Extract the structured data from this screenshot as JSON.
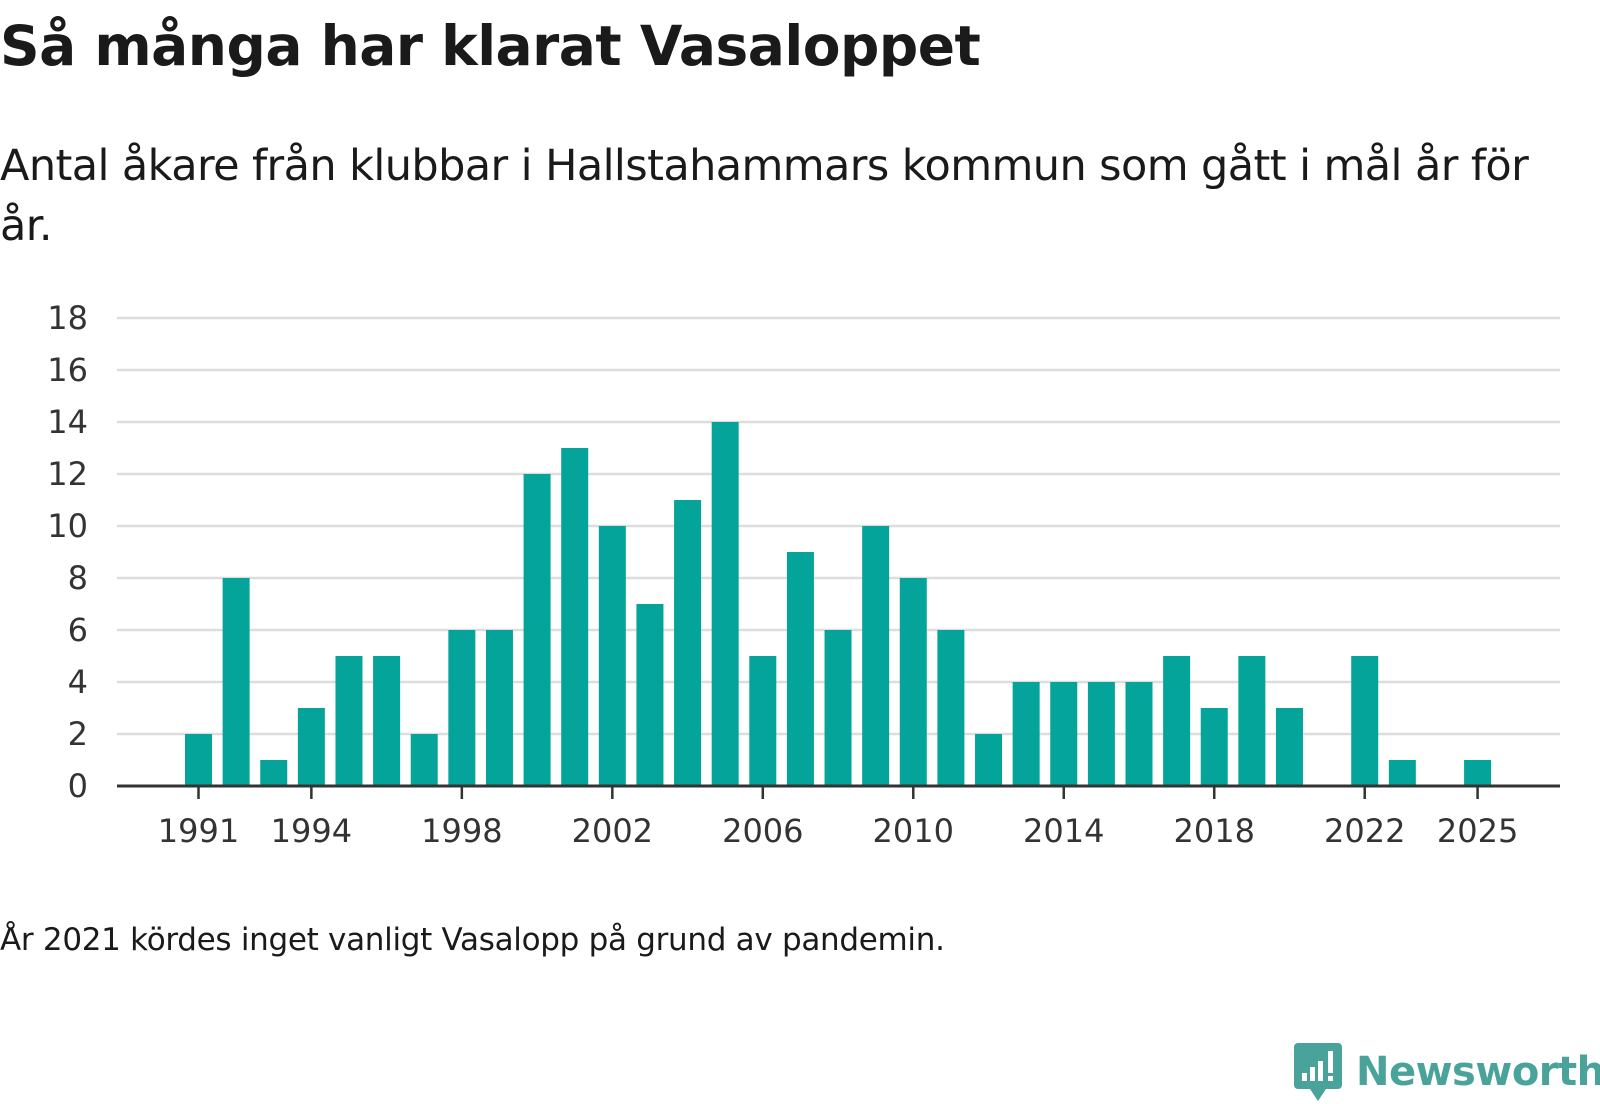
{
  "header": {
    "title": "Så många har klarat Vasaloppet",
    "subtitle": "Antal åkare från klubbar i Hallstahammars kommun som gått i mål år för år."
  },
  "footnote": "År 2021 kördes inget vanligt Vasalopp på grund av pandemin.",
  "logo": {
    "text": "Newsworthy"
  },
  "colors": {
    "bar": "#04a49a",
    "grid": "#dddddd",
    "axis": "#333333",
    "logo": "#4aa39a"
  },
  "chart_data": {
    "type": "bar",
    "title": "Så många har klarat Vasaloppet",
    "xlabel": "",
    "ylabel": "",
    "ylim": [
      0,
      18
    ],
    "y_ticks": [
      0,
      2,
      4,
      6,
      8,
      10,
      12,
      14,
      16,
      18
    ],
    "x_tick_labels": [
      1991,
      1994,
      1998,
      2002,
      2006,
      2010,
      2014,
      2018,
      2022,
      2025
    ],
    "categories": [
      1991,
      1992,
      1993,
      1994,
      1995,
      1996,
      1997,
      1998,
      1999,
      2000,
      2001,
      2002,
      2003,
      2004,
      2005,
      2006,
      2007,
      2008,
      2009,
      2010,
      2011,
      2012,
      2013,
      2014,
      2015,
      2016,
      2017,
      2018,
      2019,
      2020,
      2021,
      2022,
      2023,
      2024,
      2025
    ],
    "values": [
      2,
      8,
      1,
      3,
      5,
      5,
      2,
      6,
      6,
      12,
      13,
      10,
      7,
      11,
      14,
      5,
      9,
      6,
      10,
      8,
      6,
      2,
      4,
      4,
      4,
      4,
      5,
      3,
      5,
      3,
      0,
      5,
      1,
      0,
      1
    ],
    "grid": true,
    "legend": "none"
  }
}
